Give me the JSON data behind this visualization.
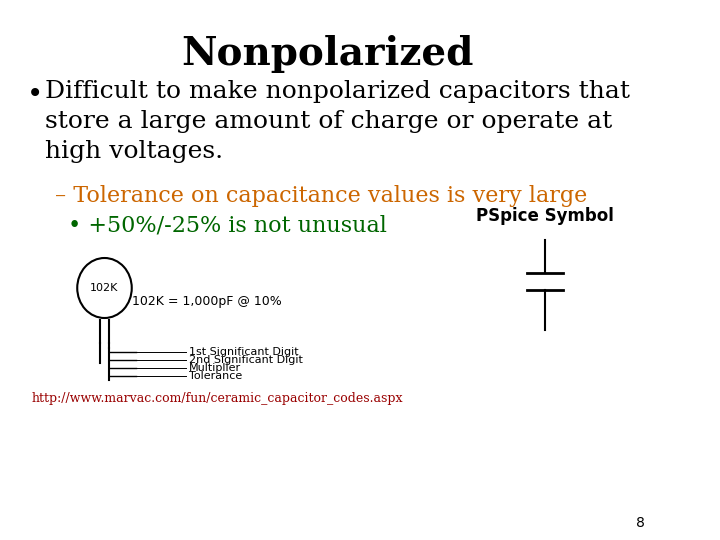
{
  "title": "Nonpolarized",
  "title_fontsize": 28,
  "title_fontweight": "bold",
  "bg_color": "#ffffff",
  "bullet1_text": "Difficult to make nonpolarized capacitors that\nstore a large amount of charge or operate at\nhigh voltages.",
  "bullet1_color": "#000000",
  "bullet1_fontsize": 18,
  "sub1_text": "– Tolerance on capacitance values is very large",
  "sub1_color": "#cc6600",
  "sub1_fontsize": 16,
  "sub2_text": "• +50%/-25% is not unusual",
  "sub2_color": "#006600",
  "sub2_fontsize": 16,
  "cap_label": "102K = 1,000pF @ 10%",
  "cap_label_fontsize": 9,
  "pspice_label": "PSpice Symbol",
  "pspice_fontsize": 12,
  "link_text": "http://www.marvac.com/fun/ceramic_capacitor_codes.aspx",
  "link_color": "#990000",
  "link_fontsize": 9,
  "page_number": "8",
  "page_fontsize": 10,
  "legend_labels": [
    "1st Significant Digit",
    "2nd Significant Digit",
    "Multiplier",
    "Tolerance"
  ],
  "legend_fontsize": 8
}
